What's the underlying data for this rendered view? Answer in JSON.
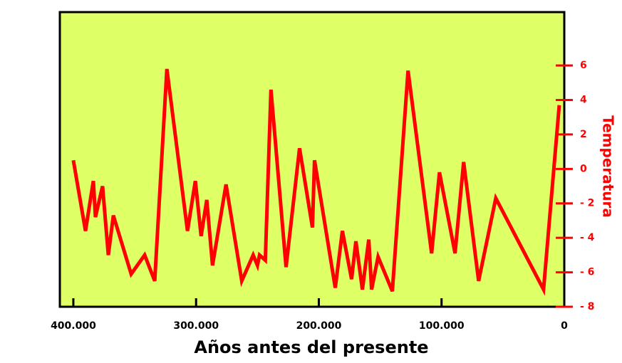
{
  "chart_data": {
    "type": "line",
    "x_label": "Años antes del presente",
    "y_label": "Temperatura",
    "x": [
      400000,
      390100,
      383700,
      382000,
      376200,
      371500,
      367400,
      352900,
      341900,
      333700,
      323800,
      307000,
      300600,
      295900,
      291300,
      286600,
      275600,
      262800,
      253500,
      250000,
      248300,
      243600,
      239000,
      226700,
      215700,
      205200,
      203500,
      186600,
      180800,
      173300,
      169800,
      164500,
      159300,
      157000,
      151700,
      140100,
      127300,
      108100,
      101700,
      89000,
      82000,
      69800,
      55800,
      16900,
      4100
    ],
    "series": [
      {
        "name": "Temperatura",
        "color": "#ff0000",
        "values": [
          0.5,
          -3.6,
          -0.7,
          -2.8,
          -1.0,
          -5.0,
          -2.7,
          -6.1,
          -5.0,
          -6.5,
          5.8,
          -3.6,
          -0.7,
          -3.9,
          -1.8,
          -5.6,
          -0.9,
          -6.5,
          -5.0,
          -5.6,
          -5.0,
          -5.3,
          4.6,
          -5.7,
          1.2,
          -3.4,
          0.5,
          -6.9,
          -3.6,
          -6.4,
          -4.2,
          -7.0,
          -4.1,
          -7.0,
          -5.1,
          -7.1,
          5.7,
          -4.9,
          -0.2,
          -4.9,
          0.4,
          -6.5,
          -1.7,
          -7.0,
          3.7
        ]
      }
    ],
    "xlim": [
      411000,
      0
    ],
    "xticks": [
      {
        "value": 400000,
        "label": "400.000"
      },
      {
        "value": 300000,
        "label": "300.000"
      },
      {
        "value": 200000,
        "label": "200.000"
      },
      {
        "value": 100000,
        "label": "100.000"
      },
      0
    ],
    "ylim": [
      -8,
      9.1
    ],
    "yticks": [
      {
        "value": -8,
        "label": "- 8"
      },
      {
        "value": -6,
        "label": "- 6"
      },
      {
        "value": -4,
        "label": "- 4"
      },
      {
        "value": -2,
        "label": "- 2"
      },
      0,
      2,
      4,
      6
    ],
    "background": "#dfff66"
  }
}
